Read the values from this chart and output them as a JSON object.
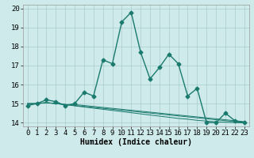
{
  "xlabel": "Humidex (Indice chaleur)",
  "ylabel": "",
  "xlim": [
    -0.5,
    23.5
  ],
  "ylim": [
    13.8,
    20.2
  ],
  "yticks": [
    14,
    15,
    16,
    17,
    18,
    19,
    20
  ],
  "xticks": [
    0,
    1,
    2,
    3,
    4,
    5,
    6,
    7,
    8,
    9,
    10,
    11,
    12,
    13,
    14,
    15,
    16,
    17,
    18,
    19,
    20,
    21,
    22,
    23
  ],
  "background_color": "#ceeaea",
  "grid_color": "#aacccc",
  "line_color": "#1a7a6e",
  "main_line": [
    14.9,
    15.0,
    15.2,
    15.1,
    14.9,
    15.0,
    15.6,
    15.4,
    17.3,
    17.1,
    19.3,
    19.8,
    17.7,
    16.3,
    16.9,
    17.6,
    17.1,
    15.4,
    15.8,
    14.0,
    14.0,
    14.5,
    14.1,
    14.0
  ],
  "reg_lines": [
    [
      15.0,
      15.0,
      15.05,
      15.0,
      14.95,
      14.95,
      14.9,
      14.85,
      14.8,
      14.75,
      14.7,
      14.65,
      14.6,
      14.55,
      14.5,
      14.45,
      14.4,
      14.35,
      14.3,
      14.25,
      14.2,
      14.15,
      14.1,
      14.05
    ],
    [
      15.0,
      15.0,
      15.05,
      15.0,
      14.95,
      14.9,
      14.85,
      14.8,
      14.75,
      14.7,
      14.65,
      14.6,
      14.55,
      14.5,
      14.45,
      14.4,
      14.35,
      14.3,
      14.25,
      14.2,
      14.15,
      14.1,
      14.05,
      14.0
    ],
    [
      15.0,
      15.0,
      15.05,
      15.0,
      14.95,
      14.88,
      14.82,
      14.76,
      14.7,
      14.64,
      14.58,
      14.52,
      14.46,
      14.4,
      14.34,
      14.28,
      14.22,
      14.18,
      14.12,
      14.08,
      14.04,
      14.02,
      14.0,
      13.98
    ]
  ],
  "marker": "D",
  "marker_size": 2.5,
  "line_width": 1.0,
  "font_size": 6.5
}
